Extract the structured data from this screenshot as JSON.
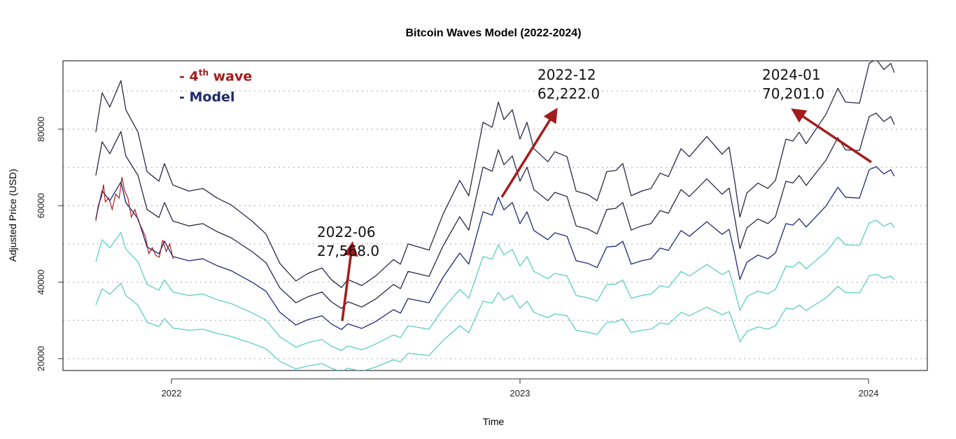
{
  "chart_data": {
    "type": "line",
    "title": "Bitcoin Waves Model (2022-2024)",
    "xlabel": "Time",
    "ylabel": "Adjusted Price (USD)",
    "xticks": [
      2022,
      2023,
      2024
    ],
    "yticks": [
      20000,
      40000,
      60000,
      80000
    ],
    "ylim": [
      16900,
      97900
    ],
    "xlim": [
      2021.69,
      2024.17
    ],
    "grid": "horizontal dotted every 10000",
    "legend_placement": "top-left",
    "legend": {
      "wave_prefix": "- 4",
      "wave_sup": "th",
      "wave_suffix": " wave",
      "model": "- Model"
    },
    "colors": {
      "wave": "#b01e1e",
      "model": "#1e2a78",
      "upper_bands": "#2a2a44",
      "lower_bands": "#5ccfc0",
      "arrow": "#a31c1c",
      "grid": "#bbbbbb"
    },
    "x": [
      2021.783,
      2021.801,
      2021.823,
      2021.855,
      2021.869,
      2021.904,
      2021.93,
      2021.964,
      2021.98,
      2022.004,
      2022.05,
      2022.09,
      2022.131,
      2022.171,
      2022.201,
      2022.231,
      2022.271,
      2022.311,
      2022.357,
      2022.392,
      2022.432,
      2022.458,
      2022.488,
      2022.506,
      2022.546,
      2022.586,
      2022.637,
      2022.657,
      2022.679,
      2022.739,
      2022.779,
      2022.827,
      2022.853,
      2022.894,
      2022.92,
      2022.938,
      2022.954,
      2022.978,
      2023.0,
      2023.02,
      2023.04,
      2023.08,
      2023.1,
      2023.135,
      2023.161,
      2023.195,
      2023.221,
      2023.249,
      2023.275,
      2023.295,
      2023.319,
      2023.349,
      2023.376,
      2023.402,
      2023.426,
      2023.462,
      2023.486,
      2023.536,
      2023.58,
      2023.6,
      2023.616,
      2023.631,
      2023.651,
      2023.683,
      2023.711,
      2023.733,
      2023.763,
      2023.783,
      2023.801,
      2023.821,
      2023.878,
      2023.912,
      2023.934,
      2023.974,
      2024.002,
      2024.022,
      2024.044,
      2024.064,
      2024.074
    ],
    "series": [
      {
        "role": "upper-band-2",
        "values": [
          79200,
          89500,
          85800,
          92700,
          85100,
          79200,
          68900,
          66400,
          71000,
          65400,
          63800,
          64500,
          62000,
          60200,
          58100,
          56000,
          52600,
          44900,
          40300,
          42300,
          43700,
          40700,
          38600,
          40700,
          39100,
          41600,
          45900,
          44700,
          50000,
          48400,
          57700,
          66600,
          62600,
          81800,
          80500,
          87100,
          82500,
          85100,
          77400,
          81800,
          74900,
          71500,
          74100,
          72800,
          63800,
          62900,
          61300,
          68900,
          69200,
          71000,
          62600,
          63800,
          64500,
          68500,
          67600,
          74900,
          72800,
          78100,
          73500,
          75300,
          66400,
          57000,
          63300,
          65900,
          64500,
          66600,
          77400,
          76900,
          79200,
          76200,
          83900,
          90700,
          87100,
          86800,
          97200,
          98300,
          95600,
          97200,
          94800
        ]
      },
      {
        "role": "upper-band-1",
        "values": [
          67900,
          76700,
          73600,
          79400,
          73000,
          67900,
          59000,
          56900,
          60800,
          56000,
          54700,
          55300,
          53200,
          51600,
          49800,
          48000,
          45100,
          38500,
          34600,
          36200,
          37400,
          34900,
          33100,
          34900,
          33500,
          35600,
          39400,
          38300,
          42800,
          41500,
          49400,
          57100,
          53600,
          70100,
          69000,
          74600,
          70700,
          73000,
          66400,
          70100,
          64200,
          61300,
          63500,
          62400,
          54700,
          53900,
          52600,
          59000,
          59300,
          60800,
          53600,
          54700,
          55300,
          58700,
          58000,
          64200,
          62400,
          67000,
          63000,
          64600,
          56900,
          48800,
          54200,
          56500,
          55300,
          57100,
          66400,
          65900,
          67900,
          65300,
          71900,
          77800,
          74600,
          74400,
          83300,
          84200,
          82000,
          83300,
          81200
        ]
      },
      {
        "name": "Model",
        "role": "model",
        "values": [
          56600,
          63900,
          61300,
          66200,
          60800,
          56600,
          49200,
          47400,
          50700,
          46700,
          45600,
          46100,
          44300,
          43000,
          41500,
          40000,
          37600,
          32100,
          28800,
          30200,
          31200,
          29100,
          27600,
          29100,
          27900,
          29700,
          32800,
          31900,
          35700,
          34600,
          41200,
          47600,
          44700,
          58400,
          57500,
          62200,
          58900,
          60800,
          55300,
          58400,
          53500,
          51100,
          52900,
          52000,
          45600,
          44900,
          43800,
          49200,
          49400,
          50700,
          44700,
          45600,
          46100,
          48900,
          48300,
          53500,
          52000,
          55800,
          52500,
          53800,
          47400,
          40700,
          45200,
          47100,
          46100,
          47600,
          55300,
          54900,
          56600,
          54400,
          59900,
          64800,
          62200,
          62000,
          69400,
          70200,
          68300,
          69400,
          67700
        ]
      },
      {
        "role": "lower-band-1",
        "values": [
          45300,
          51100,
          49000,
          53000,
          48600,
          45300,
          39400,
          37900,
          40600,
          37400,
          36500,
          36900,
          35400,
          34400,
          33200,
          32000,
          30100,
          25700,
          23000,
          24200,
          25000,
          23300,
          22100,
          23300,
          22300,
          23800,
          26200,
          25500,
          28600,
          27700,
          33000,
          38100,
          35800,
          46700,
          46000,
          49800,
          47100,
          48600,
          44200,
          46700,
          42800,
          40900,
          42300,
          41600,
          36500,
          35900,
          35000,
          39400,
          39500,
          40600,
          35800,
          36500,
          36900,
          39100,
          38600,
          42800,
          41600,
          44600,
          42000,
          43000,
          37900,
          32600,
          36200,
          37700,
          36900,
          38100,
          44200,
          43900,
          45300,
          43500,
          47900,
          51800,
          49800,
          49600,
          55500,
          56200,
          54600,
          55500,
          54200
        ]
      },
      {
        "role": "lower-band-2",
        "values": [
          34000,
          38300,
          36800,
          39700,
          36500,
          34000,
          29500,
          28400,
          30400,
          28000,
          27400,
          27700,
          26600,
          25800,
          24900,
          24000,
          22600,
          19300,
          17300,
          18100,
          18700,
          17500,
          16600,
          17500,
          16700,
          17800,
          19700,
          19100,
          21400,
          20800,
          24700,
          28600,
          26800,
          35000,
          34500,
          37300,
          35300,
          36500,
          33200,
          35000,
          32100,
          30700,
          31700,
          31200,
          27400,
          26900,
          26300,
          29500,
          29600,
          30400,
          26800,
          27400,
          27700,
          29300,
          29000,
          32100,
          31200,
          33500,
          31500,
          32300,
          28400,
          24400,
          27100,
          28300,
          27700,
          28600,
          33200,
          32900,
          34000,
          32600,
          35900,
          38900,
          37300,
          37200,
          41600,
          42100,
          41000,
          41600,
          40600
        ]
      }
    ],
    "wave": {
      "name": "4th wave",
      "x": [
        2021.783,
        2021.79,
        2021.8,
        2021.805,
        2021.81,
        2021.82,
        2021.83,
        2021.84,
        2021.85,
        2021.858,
        2021.865,
        2021.875,
        2021.885,
        2021.895,
        2021.905,
        2021.915,
        2021.925,
        2021.935,
        2021.945,
        2021.955,
        2021.965,
        2021.975,
        2021.985,
        2021.995,
        2022.005
      ],
      "values": [
        56000,
        60000,
        62500,
        65500,
        61000,
        62000,
        59000,
        63000,
        62000,
        67500,
        64000,
        62000,
        57000,
        59000,
        56000,
        54000,
        52000,
        47500,
        49000,
        47000,
        46500,
        51000,
        48000,
        50000,
        46000
      ]
    },
    "annotations": [
      {
        "date": "2022-06",
        "value": "27,568.0"
      },
      {
        "date": "2022-12",
        "value": "62,222.0"
      },
      {
        "date": "2024-01",
        "value": "70,201.0"
      }
    ]
  }
}
